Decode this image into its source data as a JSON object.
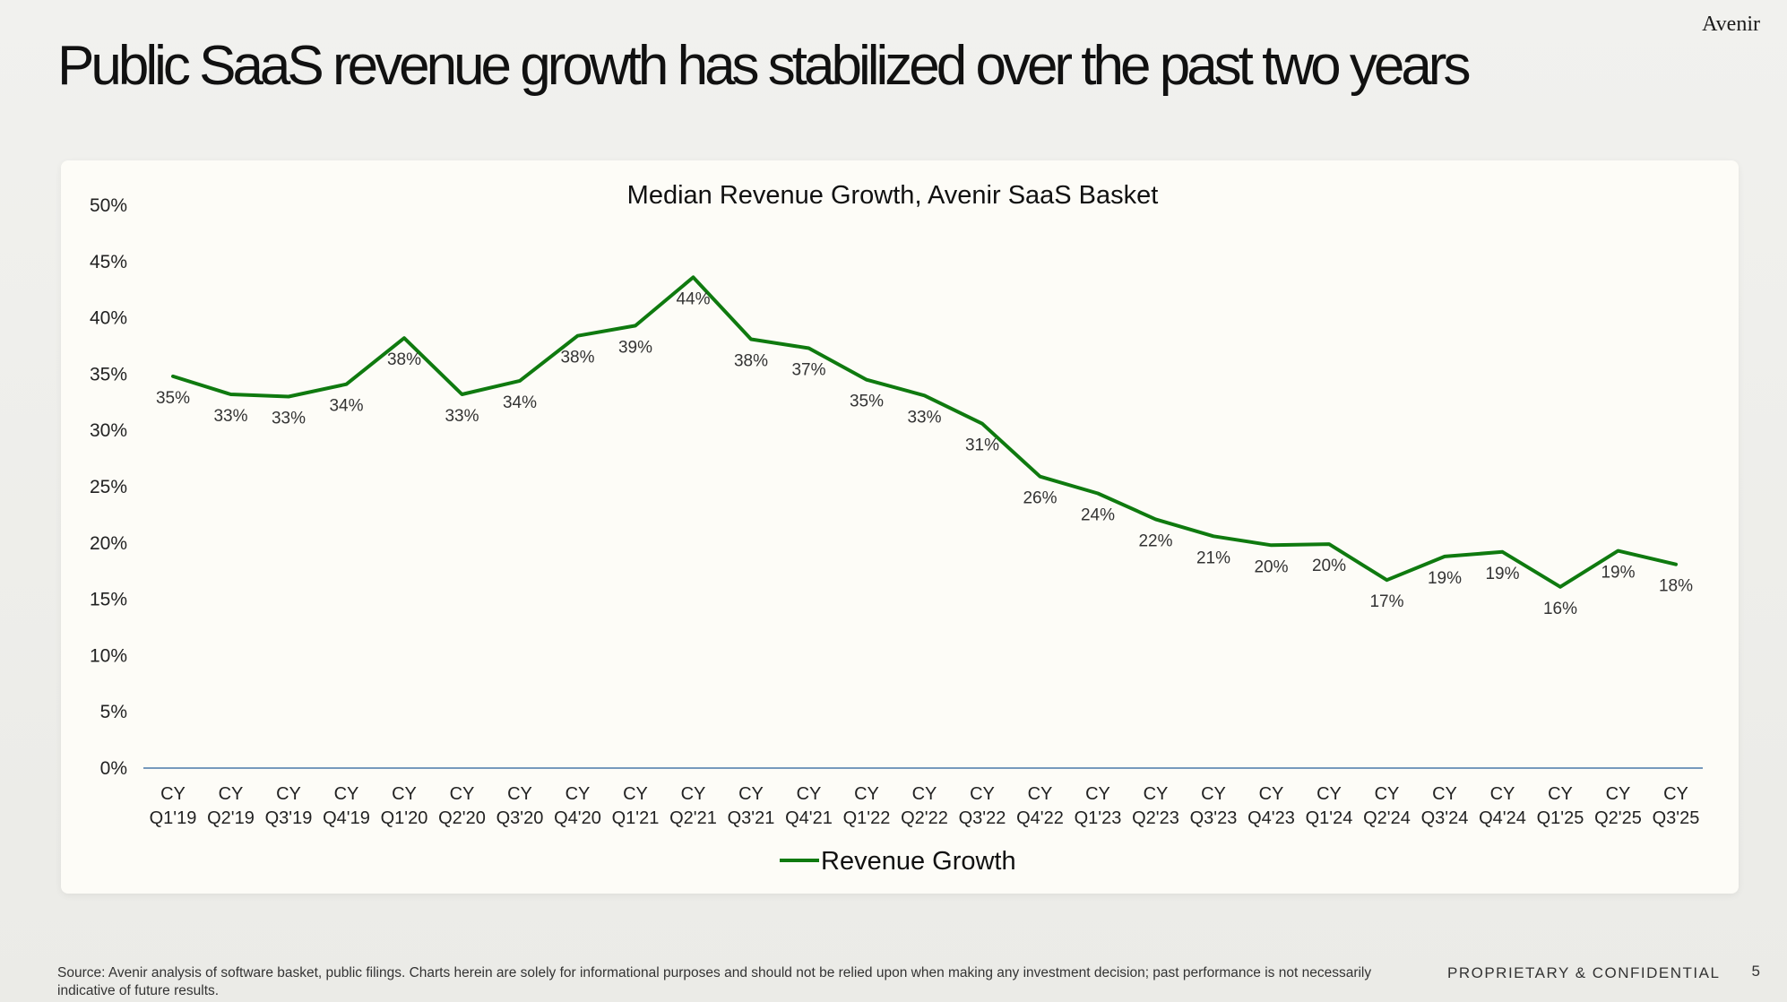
{
  "header": {
    "brand": "Avenir",
    "title": "Public SaaS revenue growth has stabilized over the past two years"
  },
  "footer": {
    "source": "Source: Avenir analysis of software basket, public filings. Charts herein are solely for informational purposes and should not be relied upon when making any investment decision; past performance is not necessarily indicative of future results.",
    "confidential": "PROPRIETARY & CONFIDENTIAL",
    "page_number": "5"
  },
  "colors": {
    "series": "#0f7a0f",
    "axis": "#4a78a8"
  },
  "chart_data": {
    "type": "line",
    "title": "Median Revenue Growth, Avenir SaaS Basket",
    "xlabel": "",
    "ylabel": "",
    "ylim": [
      0,
      50
    ],
    "ytick_step": 5,
    "grid": false,
    "legend_position": "bottom-center",
    "categories": [
      [
        "CY",
        "Q1'19"
      ],
      [
        "CY",
        "Q2'19"
      ],
      [
        "CY",
        "Q3'19"
      ],
      [
        "CY",
        "Q4'19"
      ],
      [
        "CY",
        "Q1'20"
      ],
      [
        "CY",
        "Q2'20"
      ],
      [
        "CY",
        "Q3'20"
      ],
      [
        "CY",
        "Q4'20"
      ],
      [
        "CY",
        "Q1'21"
      ],
      [
        "CY",
        "Q2'21"
      ],
      [
        "CY",
        "Q3'21"
      ],
      [
        "CY",
        "Q4'21"
      ],
      [
        "CY",
        "Q1'22"
      ],
      [
        "CY",
        "Q2'22"
      ],
      [
        "CY",
        "Q3'22"
      ],
      [
        "CY",
        "Q4'22"
      ],
      [
        "CY",
        "Q1'23"
      ],
      [
        "CY",
        "Q2'23"
      ],
      [
        "CY",
        "Q3'23"
      ],
      [
        "CY",
        "Q4'23"
      ],
      [
        "CY",
        "Q1'24"
      ],
      [
        "CY",
        "Q2'24"
      ],
      [
        "CY",
        "Q3'24"
      ],
      [
        "CY",
        "Q4'24"
      ],
      [
        "CY",
        "Q1'25"
      ],
      [
        "CY",
        "Q2'25"
      ],
      [
        "CY",
        "Q3'25"
      ]
    ],
    "series": [
      {
        "name": "Revenue Growth",
        "values": [
          34.8,
          33.2,
          33.0,
          34.1,
          38.2,
          33.2,
          34.4,
          38.4,
          39.3,
          43.6,
          38.1,
          37.3,
          34.5,
          33.1,
          30.6,
          25.9,
          24.4,
          22.1,
          20.6,
          19.8,
          19.9,
          16.7,
          18.8,
          19.2,
          16.1,
          19.3,
          18.1
        ],
        "labels": [
          "35%",
          "33%",
          "33%",
          "34%",
          "38%",
          "33%",
          "34%",
          "38%",
          "39%",
          "44%",
          "38%",
          "37%",
          "35%",
          "33%",
          "31%",
          "26%",
          "24%",
          "22%",
          "21%",
          "20%",
          "20%",
          "17%",
          "19%",
          "19%",
          "16%",
          "19%",
          "18%"
        ]
      }
    ]
  }
}
